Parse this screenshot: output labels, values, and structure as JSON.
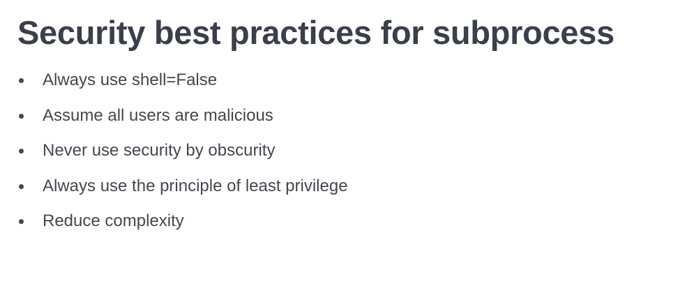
{
  "slide": {
    "title": "Security best practices for subprocess",
    "bullets": [
      "Always use shell=False",
      "Assume all users are malicious",
      "Never use security by obscurity",
      "Always use the principle of least privilege",
      "Reduce complexity"
    ]
  },
  "colors": {
    "title": "#3a3f4b",
    "text": "#43474f",
    "background": "#ffffff"
  }
}
